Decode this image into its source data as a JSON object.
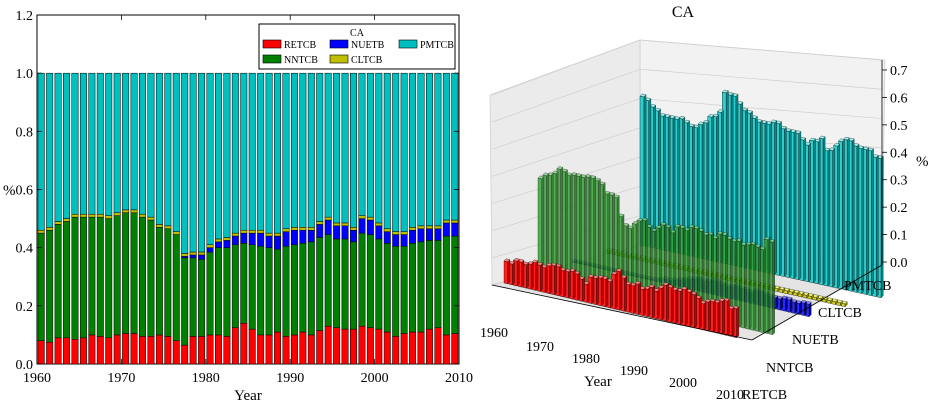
{
  "chart_data": [
    {
      "type": "bar",
      "stacked": true,
      "title": "",
      "xlabel": "Year",
      "ylabel": "%",
      "xlim": [
        1960,
        2010
      ],
      "ylim": [
        0,
        1.2
      ],
      "xticks": [
        "1960",
        "1970",
        "1980",
        "1990",
        "2000",
        "2010"
      ],
      "yticks": [
        "0.0",
        "0.2",
        "0.4",
        "0.6",
        "0.8",
        "1.0",
        "1.2"
      ],
      "legend": {
        "title": "CA",
        "position": "top-right",
        "entries": [
          "RETCB",
          "NNTCB",
          "PMTCB",
          "NUETB",
          "CLTCB"
        ]
      },
      "categories": [
        1960,
        1961,
        1962,
        1963,
        1964,
        1965,
        1966,
        1967,
        1968,
        1969,
        1970,
        1971,
        1972,
        1973,
        1974,
        1975,
        1976,
        1977,
        1978,
        1979,
        1980,
        1981,
        1982,
        1983,
        1984,
        1985,
        1986,
        1987,
        1988,
        1989,
        1990,
        1991,
        1992,
        1993,
        1994,
        1995,
        1996,
        1997,
        1998,
        1999,
        2000,
        2001,
        2002,
        2003,
        2004,
        2005,
        2006,
        2007,
        2008,
        2009
      ],
      "series": [
        {
          "name": "RETCB",
          "color": "#ff0000",
          "values": [
            0.08,
            0.075,
            0.09,
            0.09,
            0.085,
            0.09,
            0.1,
            0.095,
            0.09,
            0.1,
            0.105,
            0.105,
            0.095,
            0.095,
            0.1,
            0.095,
            0.08,
            0.065,
            0.095,
            0.095,
            0.1,
            0.1,
            0.095,
            0.125,
            0.14,
            0.12,
            0.1,
            0.1,
            0.11,
            0.095,
            0.1,
            0.11,
            0.1,
            0.115,
            0.13,
            0.125,
            0.12,
            0.12,
            0.13,
            0.125,
            0.12,
            0.11,
            0.095,
            0.105,
            0.11,
            0.11,
            0.12,
            0.125,
            0.1,
            0.105
          ]
        },
        {
          "name": "NNTCB",
          "color": "#008000",
          "values": [
            0.37,
            0.385,
            0.39,
            0.4,
            0.42,
            0.415,
            0.405,
            0.41,
            0.41,
            0.41,
            0.415,
            0.415,
            0.41,
            0.4,
            0.37,
            0.37,
            0.365,
            0.3,
            0.27,
            0.265,
            0.285,
            0.3,
            0.305,
            0.285,
            0.275,
            0.29,
            0.305,
            0.3,
            0.285,
            0.31,
            0.31,
            0.305,
            0.32,
            0.32,
            0.315,
            0.305,
            0.31,
            0.3,
            0.32,
            0.32,
            0.31,
            0.305,
            0.31,
            0.3,
            0.305,
            0.31,
            0.305,
            0.3,
            0.34,
            0.335
          ]
        },
        {
          "name": "NUETB",
          "color": "#0000ff",
          "values": [
            0,
            0,
            0,
            0,
            0,
            0,
            0,
            0,
            0,
            0,
            0,
            0,
            0,
            0,
            0,
            0,
            0,
            0.005,
            0.01,
            0.015,
            0.015,
            0.02,
            0.025,
            0.03,
            0.035,
            0.04,
            0.045,
            0.04,
            0.045,
            0.05,
            0.05,
            0.045,
            0.04,
            0.045,
            0.05,
            0.045,
            0.045,
            0.04,
            0.05,
            0.05,
            0.045,
            0.04,
            0.04,
            0.04,
            0.045,
            0.045,
            0.04,
            0.04,
            0.045,
            0.045
          ]
        },
        {
          "name": "CLTCB",
          "color": "#bfbf00",
          "values": [
            0.01,
            0.01,
            0.01,
            0.01,
            0.01,
            0.01,
            0.01,
            0.01,
            0.01,
            0.01,
            0.01,
            0.01,
            0.01,
            0.01,
            0.01,
            0.01,
            0.01,
            0.01,
            0.01,
            0.01,
            0.01,
            0.01,
            0.01,
            0.01,
            0.01,
            0.01,
            0.01,
            0.01,
            0.01,
            0.01,
            0.01,
            0.01,
            0.01,
            0.01,
            0.01,
            0.01,
            0.01,
            0.01,
            0.01,
            0.01,
            0.01,
            0.01,
            0.01,
            0.01,
            0.01,
            0.01,
            0.01,
            0.01,
            0.01,
            0.01
          ]
        },
        {
          "name": "PMTCB",
          "color": "#00bfbf",
          "values": [
            0.54,
            0.53,
            0.51,
            0.5,
            0.485,
            0.485,
            0.485,
            0.485,
            0.49,
            0.48,
            0.47,
            0.47,
            0.485,
            0.495,
            0.52,
            0.525,
            0.545,
            0.62,
            0.615,
            0.615,
            0.59,
            0.57,
            0.565,
            0.55,
            0.54,
            0.54,
            0.54,
            0.55,
            0.55,
            0.535,
            0.53,
            0.53,
            0.53,
            0.51,
            0.495,
            0.515,
            0.515,
            0.53,
            0.49,
            0.495,
            0.515,
            0.535,
            0.545,
            0.545,
            0.53,
            0.525,
            0.525,
            0.525,
            0.505,
            0.505
          ]
        }
      ]
    },
    {
      "type": "bar3d",
      "title": "CA",
      "xlabel": "Year",
      "zlabel": "%",
      "xticks": [
        "1960",
        "1970",
        "1980",
        "1990",
        "2000",
        "2010"
      ],
      "yticks": [
        "RETCB",
        "NNTCB",
        "NUETB",
        "CLTCB",
        "PMTCB"
      ],
      "zticks": [
        "0.0",
        "0.1",
        "0.2",
        "0.3",
        "0.4",
        "0.5",
        "0.6",
        "0.7"
      ],
      "zlim": [
        0,
        0.7
      ],
      "note": "3-D view of the same five series as the stacked bar chart (same values), each series plotted along its own depth row."
    }
  ]
}
